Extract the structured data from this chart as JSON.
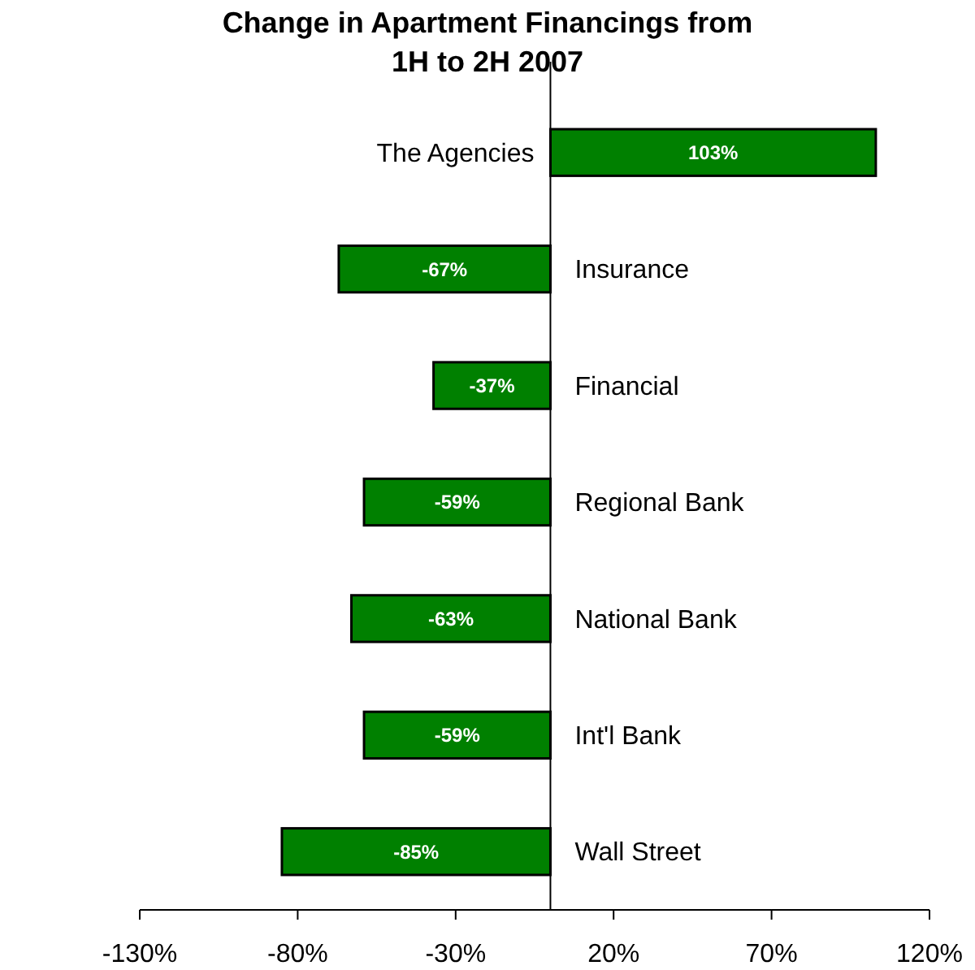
{
  "chart_data": {
    "type": "bar",
    "orientation": "horizontal",
    "title": "Change in Apartment Financings from 1H to 2H 2007",
    "categories": [
      "The Agencies",
      "Insurance",
      "Financial",
      "Regional Bank",
      "National Bank",
      "Int'l Bank",
      "Wall Street"
    ],
    "values": [
      103,
      -67,
      -37,
      -59,
      -63,
      -59,
      -85
    ],
    "value_labels": [
      "103%",
      "-67%",
      "-37%",
      "-59%",
      "-63%",
      "-59%",
      "-85%"
    ],
    "color": "#008000",
    "xlim": [
      -130,
      120
    ],
    "xticks": [
      {
        "value": -130,
        "label": "-130%"
      },
      {
        "value": -80,
        "label": "-80%"
      },
      {
        "value": -30,
        "label": "-30%"
      },
      {
        "value": 20,
        "label": "20%"
      },
      {
        "value": 70,
        "label": "70%"
      },
      {
        "value": 120,
        "label": "120%"
      }
    ],
    "grid": false
  }
}
